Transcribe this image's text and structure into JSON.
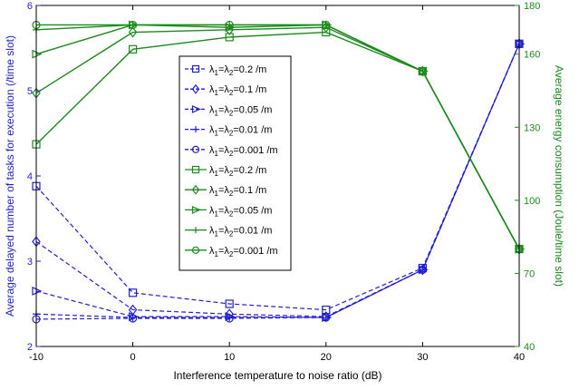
{
  "colors": {
    "left": "#1f1fd6",
    "right": "#1d8a1d",
    "axis": "#000000",
    "legend_border": "#000000"
  },
  "chart_data": {
    "type": "line",
    "title": "",
    "x": [
      -10,
      0,
      10,
      20,
      30,
      40
    ],
    "xlabel": "Interference temperature to noise ratio (dB)",
    "xlim": [
      -10,
      40
    ],
    "xticks": [
      "-10",
      "0",
      "10",
      "20",
      "30",
      "40"
    ],
    "left_axis": {
      "label": "Average delayed number of tasks for execution (/time slot)",
      "ylim": [
        2,
        6
      ],
      "ticks": [
        "2",
        "3",
        "4",
        "5",
        "6"
      ],
      "series": [
        {
          "label": "=0.2 /m",
          "marker": "square",
          "values": [
            3.88,
            2.63,
            2.5,
            2.43,
            2.92,
            5.55
          ]
        },
        {
          "label": "=0.1 /m",
          "marker": "diamond",
          "values": [
            3.23,
            2.43,
            2.38,
            2.35,
            2.9,
            5.55
          ]
        },
        {
          "label": "=0.05 /m",
          "marker": "triangle",
          "values": [
            2.65,
            2.35,
            2.35,
            2.34,
            2.9,
            5.55
          ]
        },
        {
          "label": "=0.01 /m",
          "marker": "plus",
          "values": [
            2.38,
            2.34,
            2.34,
            2.34,
            2.9,
            5.55
          ]
        },
        {
          "label": "=0.001 /m",
          "marker": "circle",
          "values": [
            2.32,
            2.33,
            2.33,
            2.34,
            2.9,
            5.55
          ]
        }
      ]
    },
    "right_axis": {
      "label": "Average energy consumption (Joule/time slot)",
      "ylim": [
        40,
        180
      ],
      "ticks": [
        "40",
        "70",
        "100",
        "130",
        "160",
        "180"
      ],
      "series": [
        {
          "label": "=0.2 /m",
          "marker": "square",
          "values": [
            123,
            162,
            167,
            169,
            153,
            80
          ]
        },
        {
          "label": "=0.1 /m",
          "marker": "diamond",
          "values": [
            144,
            169,
            170,
            171,
            153,
            80
          ]
        },
        {
          "label": "=0.05 /m",
          "marker": "triangle",
          "values": [
            160,
            172,
            171,
            172,
            153,
            80
          ]
        },
        {
          "label": "=0.01 /m",
          "marker": "plus",
          "values": [
            170,
            172,
            172,
            172,
            153,
            80
          ]
        },
        {
          "label": "=0.001 /m",
          "marker": "circle",
          "values": [
            172,
            172,
            172,
            172,
            153,
            80
          ]
        }
      ]
    },
    "legend": {
      "placement": "center-left",
      "symbol_prefix": "λ",
      "sub1": "1",
      "sub2": "2",
      "eq": "="
    }
  }
}
